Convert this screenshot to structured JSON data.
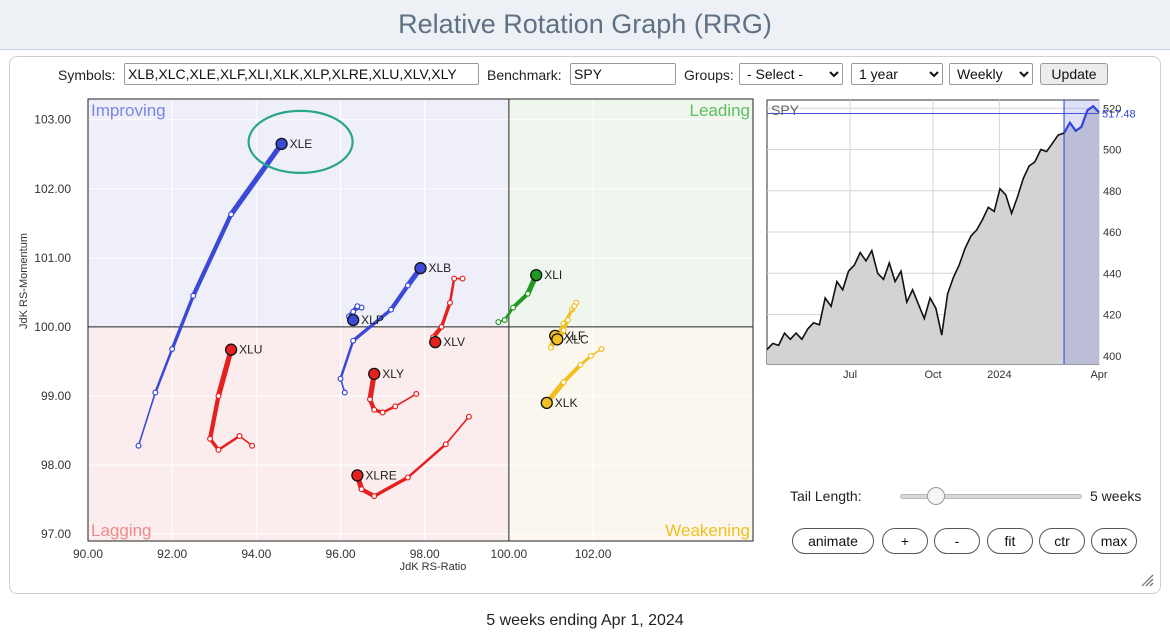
{
  "page": {
    "title": "Relative Rotation Graph (RRG)"
  },
  "controls": {
    "symbols_label": "Symbols:",
    "symbols_value": "XLB,XLC,XLE,XLF,XLI,XLK,XLP,XLRE,XLU,XLV,XLY",
    "benchmark_label": "Benchmark:",
    "benchmark_value": "SPY",
    "groups_label": "Groups:",
    "groups_value": "- Select -",
    "period_value": "1 year",
    "interval_value": "Weekly",
    "update_label": "Update"
  },
  "chart_data": [
    {
      "type": "scatter",
      "subtype": "relative-rotation-graph",
      "xlabel": "JdK RS-Ratio",
      "ylabel": "JdK RS-Momentum",
      "xlim": [
        90,
        105.8
      ],
      "ylim": [
        96.9,
        103.3
      ],
      "center": [
        100,
        100
      ],
      "x_ticks": [
        "90.00",
        "92.00",
        "94.00",
        "96.00",
        "98.00",
        "100.00",
        "102.00"
      ],
      "y_ticks": [
        "97.00",
        "98.00",
        "99.00",
        "100.00",
        "101.00",
        "102.00",
        "103.00"
      ],
      "quadrants": [
        {
          "name": "Improving",
          "position": "top-left",
          "color": "#7b84e8",
          "bg": "#eeeff9"
        },
        {
          "name": "Leading",
          "position": "top-right",
          "color": "#5fbf5f",
          "bg": "#eef6ee"
        },
        {
          "name": "Lagging",
          "position": "bottom-left",
          "color": "#f08a8a",
          "bg": "#fbeded"
        },
        {
          "name": "Weakening",
          "position": "bottom-right",
          "color": "#f0c020",
          "bg": "#fbf7ee"
        }
      ],
      "tail_length_weeks": 5,
      "highlight": {
        "symbol": "XLE",
        "color": "#2aa58a"
      },
      "series": [
        {
          "name": "XLE",
          "color": "#3a49d6",
          "points": [
            [
              91.2,
              98.28
            ],
            [
              91.6,
              99.05
            ],
            [
              92.0,
              99.68
            ],
            [
              92.5,
              100.45
            ],
            [
              93.4,
              101.63
            ],
            [
              94.6,
              102.65
            ]
          ]
        },
        {
          "name": "XLU",
          "color": "#e52020",
          "points": [
            [
              93.9,
              98.28
            ],
            [
              93.6,
              98.42
            ],
            [
              93.1,
              98.22
            ],
            [
              92.9,
              98.38
            ],
            [
              93.1,
              99.0
            ],
            [
              93.4,
              99.67
            ]
          ]
        },
        {
          "name": "XLRE",
          "color": "#e52020",
          "points": [
            [
              99.05,
              98.7
            ],
            [
              98.5,
              98.3
            ],
            [
              97.6,
              97.82
            ],
            [
              96.8,
              97.55
            ],
            [
              96.5,
              97.65
            ],
            [
              96.4,
              97.85
            ]
          ]
        },
        {
          "name": "XLY",
          "color": "#e52020",
          "points": [
            [
              97.8,
              99.03
            ],
            [
              97.3,
              98.85
            ],
            [
              97.0,
              98.76
            ],
            [
              96.8,
              98.8
            ],
            [
              96.7,
              98.95
            ],
            [
              96.8,
              99.32
            ]
          ]
        },
        {
          "name": "XLV",
          "color": "#e52020",
          "points": [
            [
              98.9,
              100.7
            ],
            [
              98.7,
              100.7
            ],
            [
              98.6,
              100.35
            ],
            [
              98.4,
              100.0
            ],
            [
              98.2,
              99.85
            ],
            [
              98.25,
              99.78
            ]
          ]
        },
        {
          "name": "XLB",
          "color": "#3a49d6",
          "points": [
            [
              96.1,
              99.05
            ],
            [
              96.0,
              99.25
            ],
            [
              96.3,
              99.8
            ],
            [
              97.2,
              100.25
            ],
            [
              97.6,
              100.6
            ],
            [
              97.9,
              100.85
            ]
          ]
        },
        {
          "name": "XLP",
          "color": "#3a49d6",
          "points": [
            [
              96.5,
              100.28
            ],
            [
              96.3,
              100.22
            ],
            [
              96.4,
              100.3
            ],
            [
              96.2,
              100.15
            ],
            [
              96.3,
              100.1
            ]
          ]
        },
        {
          "name": "XLI",
          "color": "#229922",
          "points": [
            [
              99.75,
              100.07
            ],
            [
              99.9,
              100.1
            ],
            [
              100.1,
              100.28
            ],
            [
              100.45,
              100.48
            ],
            [
              100.65,
              100.75
            ]
          ]
        },
        {
          "name": "XLF",
          "color": "#f0c020",
          "points": [
            [
              101.6,
              100.35
            ],
            [
              101.5,
              100.25
            ],
            [
              101.3,
              100.05
            ],
            [
              101.15,
              99.85
            ],
            [
              101.0,
              99.7
            ],
            [
              101.1,
              99.87
            ]
          ]
        },
        {
          "name": "XLC",
          "color": "#f0c020",
          "points": [
            [
              101.55,
              100.3
            ],
            [
              101.4,
              100.1
            ],
            [
              101.3,
              99.95
            ],
            [
              101.15,
              99.82
            ]
          ]
        },
        {
          "name": "XLK",
          "color": "#f0c020",
          "points": [
            [
              102.2,
              99.68
            ],
            [
              101.95,
              99.58
            ],
            [
              101.7,
              99.45
            ],
            [
              101.3,
              99.2
            ],
            [
              100.9,
              98.9
            ]
          ]
        }
      ]
    },
    {
      "type": "area",
      "title": "SPY",
      "x_ticks": [
        "Jul",
        "Oct",
        "2024",
        "Apr"
      ],
      "y_ticks": [
        "400",
        "420",
        "440",
        "460",
        "480",
        "500",
        "520"
      ],
      "ylim": [
        396,
        524
      ],
      "current_value": "517.48",
      "values": [
        403,
        406,
        405,
        411,
        408,
        411,
        408,
        413,
        416,
        415,
        428,
        424,
        436,
        432,
        441,
        444,
        450,
        446,
        451,
        440,
        437,
        445,
        436,
        441,
        426,
        432,
        425,
        418,
        428,
        423,
        410,
        430,
        438,
        444,
        452,
        458,
        461,
        466,
        472,
        470,
        481,
        478,
        469,
        477,
        486,
        492,
        494,
        500,
        499,
        503,
        507,
        508,
        513,
        509,
        511,
        519,
        521,
        518
      ],
      "highlight_last_points": 6
    }
  ],
  "tail": {
    "label": "Tail Length:",
    "value_label": "5 weeks",
    "weeks": 5,
    "max_weeks": 25
  },
  "buttons": {
    "animate": "animate",
    "plus": "+",
    "minus": "-",
    "fit": "fit",
    "ctr": "ctr",
    "max": "max"
  },
  "footer": "5 weeks ending Apr 1, 2024"
}
